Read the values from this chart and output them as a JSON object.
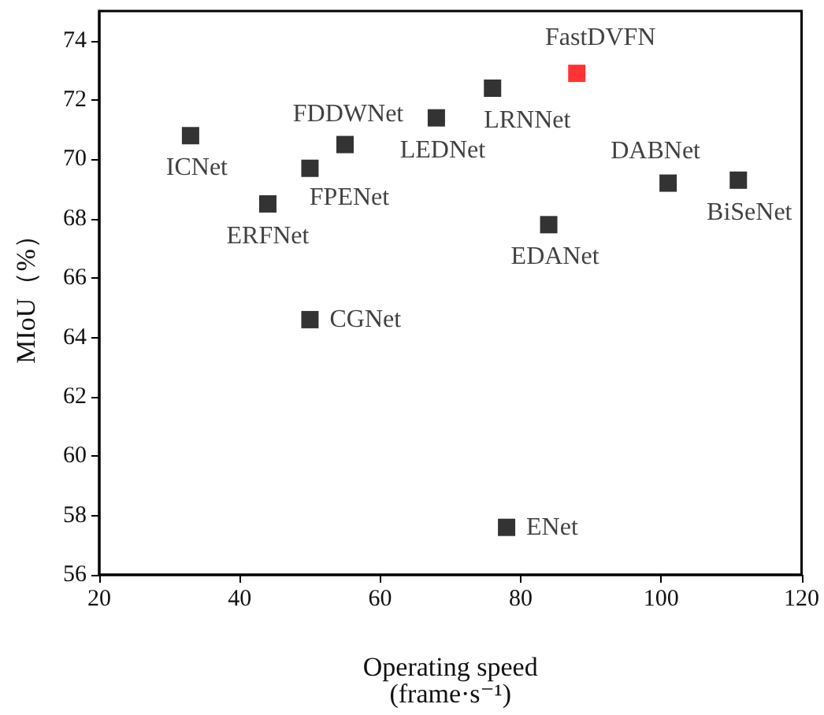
{
  "chart_data": {
    "type": "scatter",
    "xlabel": "Operating speed\n(frame·s⁻¹)",
    "ylabel": "MIoU（%）",
    "series": [
      {
        "name": "ICNet",
        "color": "#000000",
        "x": [
          33
        ],
        "values": [
          70.8
        ]
      },
      {
        "name": "ERFNet",
        "color": "#000000",
        "x": [
          44
        ],
        "values": [
          68.5
        ]
      },
      {
        "name": "FPENet",
        "color": "#000000",
        "x": [
          50
        ],
        "values": [
          69.7
        ]
      },
      {
        "name": "FDDWNet",
        "color": "#000000",
        "x": [
          55
        ],
        "values": [
          70.5
        ]
      },
      {
        "name": "CGNet",
        "color": "#000000",
        "x": [
          50
        ],
        "values": [
          64.6
        ]
      },
      {
        "name": "LEDNet",
        "color": "#000000",
        "x": [
          68
        ],
        "values": [
          71.4
        ]
      },
      {
        "name": "LRNNet",
        "color": "#000000",
        "x": [
          76
        ],
        "values": [
          72.4
        ]
      },
      {
        "name": "FastDVFN",
        "color": "#ff0000",
        "x": [
          88
        ],
        "values": [
          72.9
        ]
      },
      {
        "name": "EDANet",
        "color": "#000000",
        "x": [
          84
        ],
        "values": [
          67.8
        ]
      },
      {
        "name": "DABNet",
        "color": "#000000",
        "x": [
          101
        ],
        "values": [
          69.2
        ]
      },
      {
        "name": "BiSeNet",
        "color": "#000000",
        "x": [
          111
        ],
        "values": [
          69.3
        ]
      },
      {
        "name": "ENet",
        "color": "#000000",
        "x": [
          78
        ],
        "values": [
          57.6
        ]
      }
    ],
    "xlim": [
      20,
      120
    ],
    "xticks": [
      20,
      40,
      60,
      80,
      100,
      120
    ],
    "ylim": [
      56,
      75
    ],
    "yticks": [
      56,
      58,
      60,
      62,
      64,
      66,
      68,
      70,
      72,
      74
    ],
    "marker": "square",
    "grid": false,
    "legend": false
  }
}
